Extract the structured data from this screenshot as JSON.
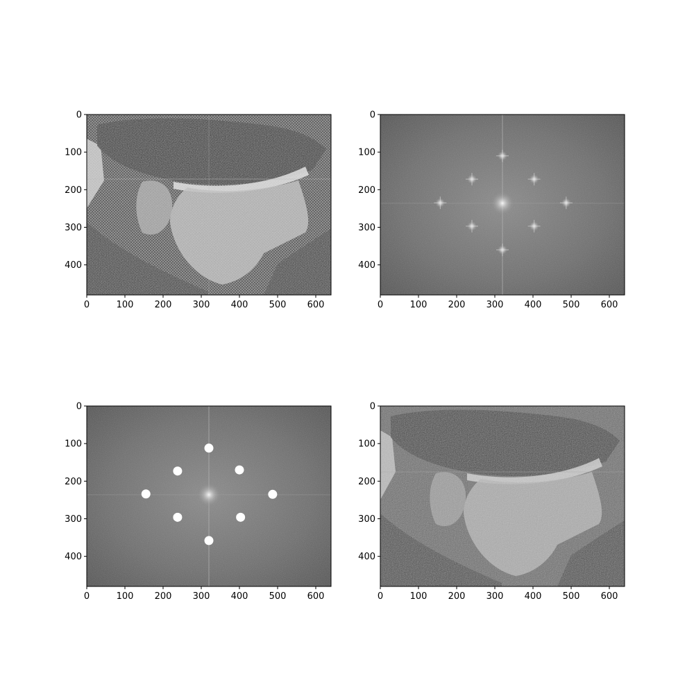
{
  "figure": {
    "background": "#ffffff",
    "axis_color": "#000000"
  },
  "chart_data": [
    {
      "type": "image",
      "panel": "top-left",
      "content": "noisy halftone-patterned grayscale photo of a man in a cap",
      "image_shape": [
        480,
        640
      ],
      "xlim": [
        0,
        640
      ],
      "ylim": [
        480,
        0
      ],
      "xticks": [
        0,
        100,
        200,
        300,
        400,
        500,
        600
      ],
      "yticks": [
        0,
        100,
        200,
        300,
        400
      ],
      "xtick_labels": [
        "0",
        "100",
        "200",
        "300",
        "400",
        "500",
        "600"
      ],
      "ytick_labels": [
        "0",
        "100",
        "200",
        "300",
        "400"
      ]
    },
    {
      "type": "image",
      "panel": "top-right",
      "content": "log-magnitude Fourier spectrum with periodic bright peaks",
      "image_shape": [
        480,
        640
      ],
      "xlim": [
        0,
        640
      ],
      "ylim": [
        480,
        0
      ],
      "center": [
        320,
        236
      ],
      "peaks": [
        {
          "x": 320,
          "y": 110
        },
        {
          "x": 240,
          "y": 172
        },
        {
          "x": 403,
          "y": 172
        },
        {
          "x": 157,
          "y": 235
        },
        {
          "x": 487,
          "y": 235
        },
        {
          "x": 240,
          "y": 297
        },
        {
          "x": 403,
          "y": 297
        },
        {
          "x": 320,
          "y": 360
        }
      ],
      "xticks": [
        0,
        100,
        200,
        300,
        400,
        500,
        600
      ],
      "yticks": [
        0,
        100,
        200,
        300,
        400
      ],
      "xtick_labels": [
        "0",
        "100",
        "200",
        "300",
        "400",
        "500",
        "600"
      ],
      "ytick_labels": [
        "0",
        "100",
        "200",
        "300",
        "400"
      ]
    },
    {
      "type": "image",
      "panel": "bottom-left",
      "content": "Fourier spectrum with periodic peaks masked out by white discs",
      "image_shape": [
        480,
        640
      ],
      "xlim": [
        0,
        640
      ],
      "ylim": [
        480,
        0
      ],
      "center": [
        320,
        236
      ],
      "masked_points": [
        {
          "x": 320,
          "y": 112
        },
        {
          "x": 238,
          "y": 173
        },
        {
          "x": 400,
          "y": 170
        },
        {
          "x": 155,
          "y": 234
        },
        {
          "x": 487,
          "y": 235
        },
        {
          "x": 238,
          "y": 296
        },
        {
          "x": 403,
          "y": 296
        },
        {
          "x": 320,
          "y": 358
        }
      ],
      "xticks": [
        0,
        100,
        200,
        300,
        400,
        500,
        600
      ],
      "yticks": [
        0,
        100,
        200,
        300,
        400
      ],
      "xtick_labels": [
        "0",
        "100",
        "200",
        "300",
        "400",
        "500",
        "600"
      ],
      "ytick_labels": [
        "0",
        "100",
        "200",
        "300",
        "400"
      ]
    },
    {
      "type": "image",
      "panel": "bottom-right",
      "content": "filtered (denoised) grayscale photo of a man in a cap",
      "image_shape": [
        480,
        640
      ],
      "xlim": [
        0,
        640
      ],
      "ylim": [
        480,
        0
      ],
      "xticks": [
        0,
        100,
        200,
        300,
        400,
        500,
        600
      ],
      "yticks": [
        0,
        100,
        200,
        300,
        400
      ],
      "xtick_labels": [
        "0",
        "100",
        "200",
        "300",
        "400",
        "500",
        "600"
      ],
      "ytick_labels": [
        "0",
        "100",
        "200",
        "300",
        "400"
      ]
    }
  ]
}
